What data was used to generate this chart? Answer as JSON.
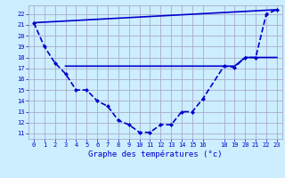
{
  "title": "Graphe des températures (°c)",
  "bg_color": "#cceeff",
  "grid_color": "#aaaacc",
  "line_color": "#0000cc",
  "xlim": [
    -0.5,
    23.5
  ],
  "ylim": [
    10.5,
    22.8
  ],
  "yticks": [
    11,
    12,
    13,
    14,
    15,
    16,
    17,
    18,
    19,
    20,
    21,
    22
  ],
  "xticks": [
    0,
    1,
    2,
    3,
    4,
    5,
    6,
    7,
    8,
    9,
    10,
    11,
    12,
    13,
    14,
    15,
    16,
    18,
    19,
    20,
    21,
    22,
    23
  ],
  "curve1_x": [
    0,
    1,
    2,
    3,
    4,
    5,
    6,
    7,
    8,
    9,
    10,
    11,
    12,
    13,
    14,
    15,
    16,
    18,
    19,
    20,
    21,
    22,
    23
  ],
  "curve1_y": [
    21.2,
    19.0,
    17.5,
    16.5,
    15.0,
    15.0,
    14.0,
    13.5,
    12.2,
    11.8,
    11.1,
    11.1,
    11.8,
    11.8,
    13.0,
    13.0,
    14.2,
    17.2,
    17.1,
    18.0,
    18.0,
    22.0,
    22.4
  ],
  "curve2_x": [
    0,
    23
  ],
  "curve2_y": [
    21.2,
    22.4
  ],
  "curve3_x": [
    3,
    4,
    5,
    6,
    7,
    8,
    9,
    10,
    11,
    12,
    13,
    14,
    15,
    16,
    18,
    19,
    20,
    21,
    22,
    23
  ],
  "curve3_y": [
    17.2,
    17.2,
    17.2,
    17.2,
    17.2,
    17.2,
    17.2,
    17.2,
    17.2,
    17.2,
    17.2,
    17.2,
    17.2,
    17.2,
    17.2,
    17.2,
    18.0,
    18.0,
    18.0,
    18.0
  ]
}
